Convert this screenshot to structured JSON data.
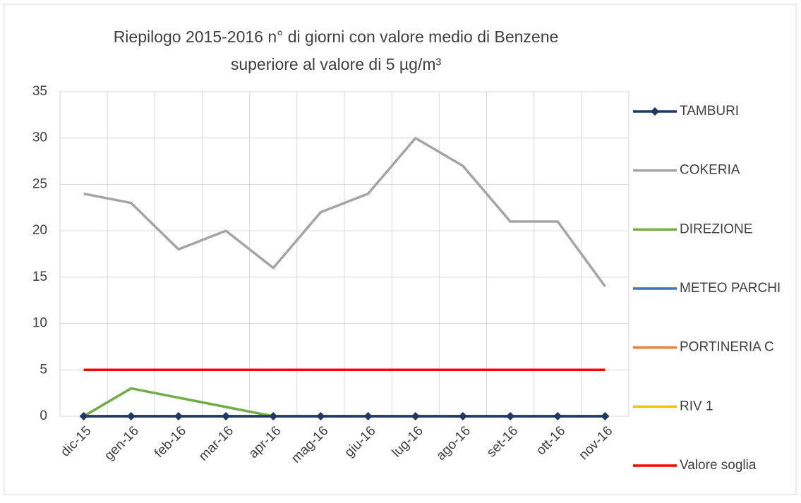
{
  "chart_data": {
    "type": "line",
    "title": [
      "Riepilogo 2015-2016 n° di giorni con valore medio di Benzene",
      "superiore al valore di 5 µg/m³"
    ],
    "categories": [
      "dic-15",
      "gen-16",
      "feb-16",
      "mar-16",
      "apr-16",
      "mag-16",
      "giu-16",
      "lug-16",
      "ago-16",
      "set-16",
      "ott-16",
      "nov-16"
    ],
    "series": [
      {
        "name": "TAMBURI",
        "color": "#1f3864",
        "marker": "diamond",
        "values": [
          0,
          0,
          0,
          0,
          0,
          0,
          0,
          0,
          0,
          0,
          0,
          0
        ]
      },
      {
        "name": "COKERIA",
        "color": "#a5a5a5",
        "values": [
          24,
          23,
          18,
          20,
          16,
          22,
          24,
          30,
          27,
          21,
          21,
          14
        ]
      },
      {
        "name": "DIREZIONE",
        "color": "#70ad47",
        "values": [
          0,
          3,
          2,
          1,
          0,
          0,
          0,
          0,
          0,
          0,
          0,
          0
        ]
      },
      {
        "name": "METEO PARCHI",
        "color": "#4472c4",
        "values": [
          0,
          0,
          0,
          0,
          0,
          0,
          0,
          0,
          0,
          0,
          0,
          0
        ]
      },
      {
        "name": "PORTINERIA C",
        "color": "#ed7d31",
        "values": [
          0,
          0,
          0,
          0,
          0,
          0,
          0,
          0,
          0,
          0,
          0,
          0
        ]
      },
      {
        "name": "RIV 1",
        "color": "#ffc000",
        "values": [
          0,
          0,
          0,
          0,
          0,
          0,
          0,
          0,
          0,
          0,
          0,
          0
        ]
      },
      {
        "name": "Valore soglia",
        "color": "#ff0000",
        "values": [
          5,
          5,
          5,
          5,
          5,
          5,
          5,
          5,
          5,
          5,
          5,
          5
        ]
      }
    ],
    "ylim": [
      0,
      35
    ],
    "yticks": [
      0,
      5,
      10,
      15,
      20,
      25,
      30,
      35
    ],
    "grid": true,
    "legend": "right"
  }
}
